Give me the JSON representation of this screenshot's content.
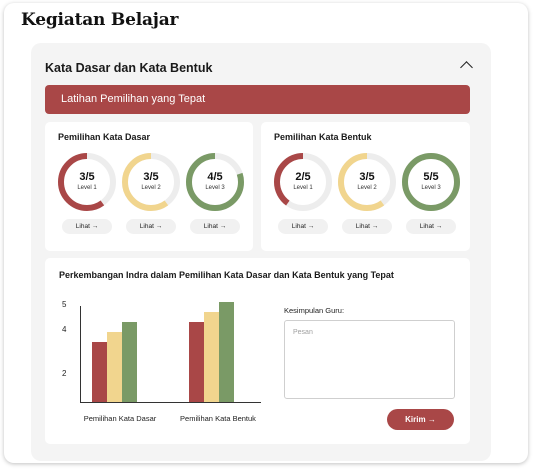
{
  "page": {
    "title": "Kegiatan Belajar"
  },
  "section": {
    "title": "Kata Dasar dan Kata Bentuk",
    "collapse_icon": "chevron-up-icon",
    "banner": "Latihan Pemilihan yang Tepat"
  },
  "colors": {
    "red": "#a94747",
    "yellow": "#f1d58e",
    "green": "#7a9a66",
    "track": "#ededed"
  },
  "groups": [
    {
      "title": "Pemilihan Kata Dasar",
      "items": [
        {
          "score": "3/5",
          "level": "Level 1",
          "fraction": 0.6,
          "color": "#a94747",
          "button": "Lihat →"
        },
        {
          "score": "3/5",
          "level": "Level 2",
          "fraction": 0.6,
          "color": "#f1d58e",
          "button": "Lihat →"
        },
        {
          "score": "4/5",
          "level": "Level 3",
          "fraction": 0.8,
          "color": "#7a9a66",
          "button": "Lihat →"
        }
      ]
    },
    {
      "title": "Pemilihan Kata Bentuk",
      "items": [
        {
          "score": "2/5",
          "level": "Level 1",
          "fraction": 0.4,
          "color": "#a94747",
          "button": "Lihat →"
        },
        {
          "score": "3/5",
          "level": "Level 2",
          "fraction": 0.6,
          "color": "#f1d58e",
          "button": "Lihat →"
        },
        {
          "score": "5/5",
          "level": "Level 3",
          "fraction": 1.0,
          "color": "#7a9a66",
          "button": "Lihat →"
        }
      ]
    }
  ],
  "progress_chart": {
    "title": "Perkembangan Indra dalam Pemilihan Kata Dasar dan Kata Bentuk yang Tepat"
  },
  "chart_data": {
    "type": "bar",
    "categories": [
      "Pemilihan Kata Dasar",
      "Pemilihan Kata Bentuk"
    ],
    "series": [
      {
        "values": [
          3,
          4
        ]
      },
      {
        "values": [
          3.5,
          4.5
        ]
      },
      {
        "values": [
          4,
          5
        ]
      }
    ],
    "series_colors": [
      "#a94747",
      "#f1d58e",
      "#7a9a66"
    ],
    "y_ticks": [
      "5",
      "4",
      "2"
    ],
    "ylim": [
      0,
      6
    ]
  },
  "feedback": {
    "label": "Kesimpulan Guru:",
    "placeholder": "Pesan",
    "value": "",
    "submit": "Kirim →"
  }
}
